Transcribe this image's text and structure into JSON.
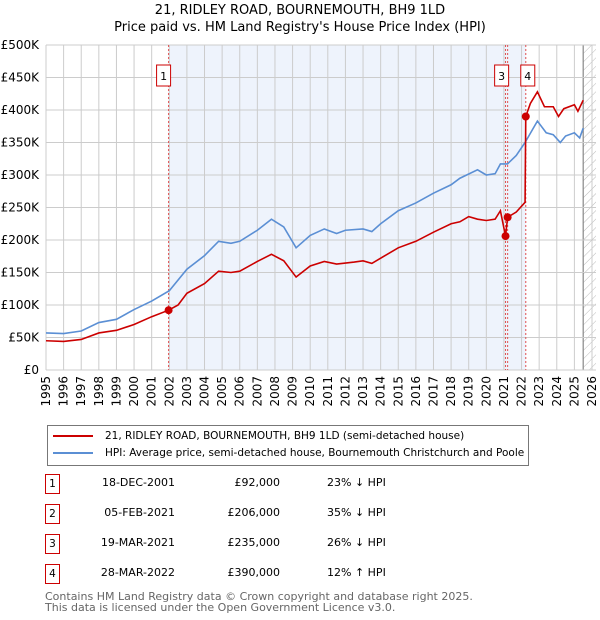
{
  "title": "21, RIDLEY ROAD, BOURNEMOUTH, BH9 1LD",
  "subtitle": "Price paid vs. HM Land Registry's House Price Index (HPI)",
  "chart_data": {
    "type": "line",
    "ylim": [
      0,
      500000
    ],
    "xlim": [
      1995,
      2026
    ],
    "yticks": [
      {
        "v": 0,
        "l": "£0"
      },
      {
        "v": 50000,
        "l": "£50K"
      },
      {
        "v": 100000,
        "l": "£100K"
      },
      {
        "v": 150000,
        "l": "£150K"
      },
      {
        "v": 200000,
        "l": "£200K"
      },
      {
        "v": 250000,
        "l": "£250K"
      },
      {
        "v": 300000,
        "l": "£300K"
      },
      {
        "v": 350000,
        "l": "£350K"
      },
      {
        "v": 400000,
        "l": "£400K"
      },
      {
        "v": 450000,
        "l": "£450K"
      },
      {
        "v": 500000,
        "l": "£500K"
      }
    ],
    "xticks": [
      "1995",
      "1996",
      "1997",
      "1998",
      "1999",
      "2000",
      "2001",
      "2002",
      "2003",
      "2004",
      "2005",
      "2006",
      "2007",
      "2008",
      "2009",
      "2010",
      "2011",
      "2012",
      "2013",
      "2014",
      "2015",
      "2016",
      "2017",
      "2018",
      "2019",
      "2020",
      "2021",
      "2022",
      "2023",
      "2024",
      "2025",
      "2026"
    ],
    "shaded_range": [
      2001.96,
      2022.24
    ],
    "hatch_from": 2025.5,
    "series": [
      {
        "name": "21, RIDLEY ROAD, BOURNEMOUTH, BH9 1LD (semi-detached house)",
        "color": "#cc0000",
        "x": [
          1995,
          1996,
          1997,
          1998,
          1999,
          2000,
          2001,
          2001.96,
          2002.5,
          2003,
          2004,
          2004.8,
          2005.5,
          2006,
          2007,
          2007.8,
          2008.5,
          2009.2,
          2010,
          2010.8,
          2011.5,
          2012.5,
          2013,
          2013.5,
          2014,
          2015,
          2016,
          2017,
          2018,
          2018.5,
          2019,
          2019.5,
          2020,
          2020.5,
          2020.8,
          2021.09,
          2021.21,
          2021.7,
          2022.2,
          2022.24,
          2022.5,
          2022.9,
          2023.3,
          2023.8,
          2024.1,
          2024.4,
          2025,
          2025.2,
          2025.5
        ],
        "y": [
          45000,
          44000,
          47000,
          57000,
          61000,
          70000,
          82000,
          92000,
          100000,
          118000,
          133000,
          152000,
          150000,
          152000,
          167000,
          178000,
          168000,
          143000,
          160000,
          167000,
          163000,
          166000,
          168000,
          164000,
          172000,
          188000,
          198000,
          212000,
          225000,
          228000,
          236000,
          232000,
          230000,
          232000,
          245000,
          206000,
          235000,
          243000,
          258000,
          390000,
          410000,
          428000,
          405000,
          405000,
          390000,
          402000,
          408000,
          398000,
          415000
        ]
      },
      {
        "name": "HPI: Average price, semi-detached house, Bournemouth Christchurch and Poole",
        "color": "#5b8fd4",
        "x": [
          1995,
          1996,
          1997,
          1998,
          1999,
          2000,
          2001,
          2002,
          2003,
          2004,
          2004.8,
          2005.5,
          2006,
          2007,
          2007.8,
          2008.5,
          2009.2,
          2010,
          2010.8,
          2011.5,
          2012,
          2013,
          2013.5,
          2014,
          2015,
          2016,
          2017,
          2018,
          2018.5,
          2019.5,
          2020,
          2020.5,
          2020.8,
          2021.2,
          2021.7,
          2022.2,
          2022.9,
          2023.4,
          2023.8,
          2024.2,
          2024.5,
          2025,
          2025.3,
          2025.5
        ],
        "y": [
          57000,
          56000,
          60000,
          73000,
          78000,
          93000,
          106000,
          122000,
          155000,
          176000,
          198000,
          195000,
          198000,
          215000,
          232000,
          220000,
          188000,
          207000,
          217000,
          210000,
          215000,
          217000,
          213000,
          225000,
          245000,
          257000,
          272000,
          285000,
          295000,
          308000,
          300000,
          302000,
          317000,
          317000,
          330000,
          350000,
          383000,
          365000,
          362000,
          350000,
          360000,
          365000,
          357000,
          372000
        ]
      }
    ],
    "sales": [
      {
        "n": "1",
        "x": 2001.96,
        "y": 92000,
        "date": "18-DEC-2001",
        "price": "£92,000",
        "hpi": "23% ↓ HPI",
        "box": true
      },
      {
        "n": "2",
        "x": 2021.09,
        "y": 206000,
        "date": "05-FEB-2021",
        "price": "£206,000",
        "hpi": "35% ↓ HPI",
        "box": false
      },
      {
        "n": "3",
        "x": 2021.21,
        "y": 235000,
        "date": "19-MAR-2021",
        "price": "£235,000",
        "hpi": "26% ↓ HPI",
        "box": true
      },
      {
        "n": "4",
        "x": 2022.24,
        "y": 390000,
        "date": "28-MAR-2022",
        "price": "£390,000",
        "hpi": "12% ↑ HPI",
        "box": true
      }
    ]
  },
  "legend": [
    "21, RIDLEY ROAD, BOURNEMOUTH, BH9 1LD (semi-detached house)",
    "HPI: Average price, semi-detached house, Bournemouth Christchurch and Poole"
  ],
  "footer": [
    "Contains HM Land Registry data © Crown copyright and database right 2025.",
    "This data is licensed under the Open Government Licence v3.0."
  ]
}
